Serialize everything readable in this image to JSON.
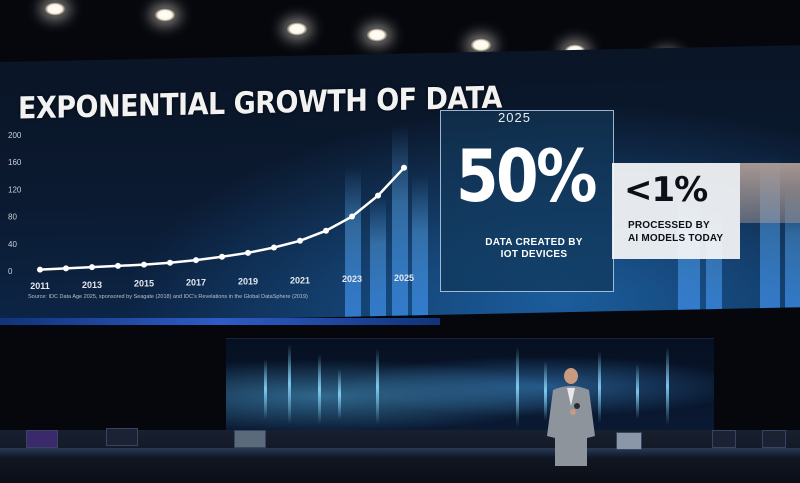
{
  "slide": {
    "title": "EXPONENTIAL GROWTH OF DATA",
    "source": "Source: IDC Data Age 2025, sponsored by Seagate (2018) and IDC's Revelations in the Global DataSphere (2019)",
    "stat_year": "2025",
    "stat_main_value": "50%",
    "stat_main_caption_line1": "DATA CREATED BY",
    "stat_main_caption_line2": "IOT DEVICES",
    "stat_secondary_value": "<1%",
    "stat_secondary_caption_line1": "PROCESSED BY",
    "stat_secondary_caption_line2": "AI MODELS TODAY"
  },
  "chart_data": {
    "type": "line",
    "title": "EXPONENTIAL GROWTH OF DATA",
    "xlabel": "",
    "ylabel": "",
    "x_ticks": [
      "2011",
      "2013",
      "2015",
      "2017",
      "2019",
      "2021",
      "2023",
      "2025"
    ],
    "y_ticks": [
      "0",
      "40",
      "80",
      "120",
      "160",
      "200"
    ],
    "ylim": [
      0,
      200
    ],
    "xlim": [
      2011,
      2025
    ],
    "grid": false,
    "series": [
      {
        "x": [
          2011,
          2012,
          2013,
          2014,
          2015,
          2016,
          2017,
          2018,
          2019,
          2020,
          2021,
          2022,
          2023,
          2024,
          2025
        ],
        "values": [
          2,
          3,
          4,
          5,
          6,
          8,
          11,
          15,
          20,
          27,
          36,
          50,
          70,
          100,
          140
        ]
      }
    ],
    "colors": {
      "line": "#ffffff",
      "markers": "#ffffff"
    }
  },
  "colors": {
    "screen_bg": "#0b1a31",
    "accent_blue": "#2f5cc6",
    "card_light": "#f5f6f8"
  }
}
